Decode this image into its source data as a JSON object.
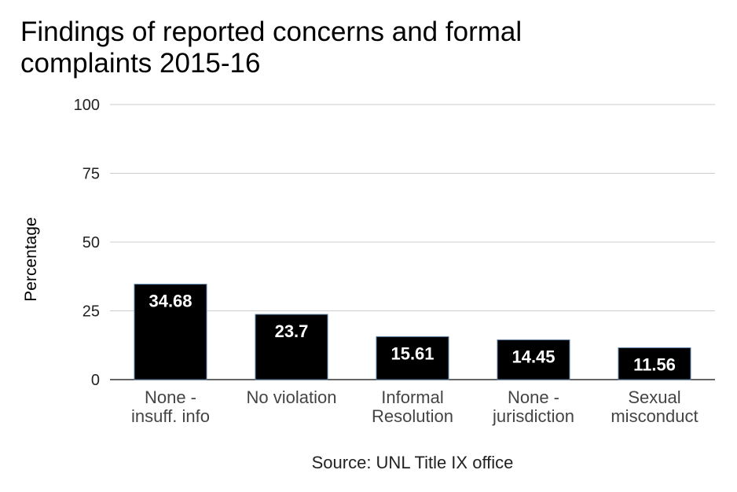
{
  "chart_data": {
    "type": "bar",
    "title_lines": [
      "Findings of reported concerns and formal",
      "complaints 2015-16"
    ],
    "ylabel": "Percentage",
    "xlabel": "",
    "source": "Source: UNL Title IX office",
    "ylim": [
      0,
      100
    ],
    "yticks": [
      0,
      25,
      50,
      75,
      100
    ],
    "grid": true,
    "categories": [
      [
        "None -",
        "insuff. info"
      ],
      [
        "No violation"
      ],
      [
        "Informal",
        "Resolution"
      ],
      [
        "None -",
        "jurisdiction"
      ],
      [
        "Sexual",
        "misconduct"
      ]
    ],
    "values": [
      34.68,
      23.7,
      15.61,
      14.45,
      11.56
    ],
    "value_labels": [
      "34.68",
      "23.7",
      "15.61",
      "14.45",
      "11.56"
    ],
    "colors": {
      "bar": "#000000",
      "bar_border": "#5b7fa6",
      "bar_label": "#ffffff"
    }
  }
}
